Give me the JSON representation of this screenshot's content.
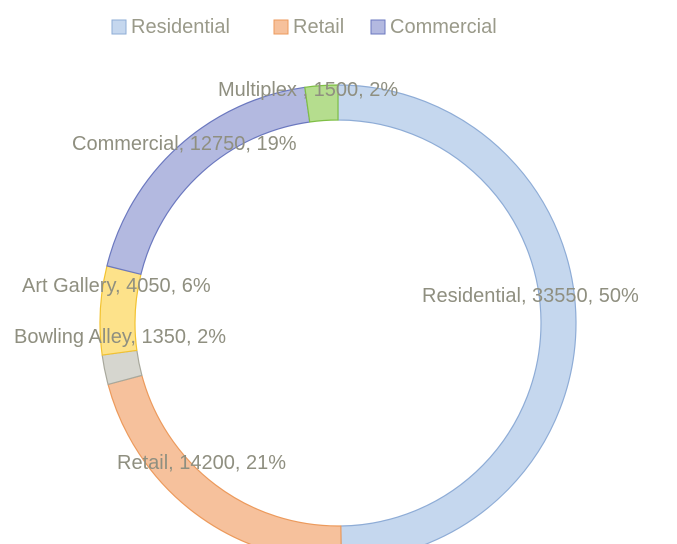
{
  "chart_data": {
    "type": "pie",
    "variant": "doughnut",
    "legend_position": "top",
    "legend": [
      {
        "label": "Residential",
        "color": "#c5d7ee",
        "edge": "#8eacd6"
      },
      {
        "label": "Retail",
        "color": "#f6c19c",
        "edge": "#ec9a5c"
      },
      {
        "label": "Commercial",
        "color": "#b3b9e0",
        "edge": "#6b78bf"
      }
    ],
    "slices": [
      {
        "label": "Residential",
        "value": 33550,
        "percent": "50%",
        "text": "Residential, 33550, 50%",
        "color": "#c5d7ee",
        "edge": "#8eacd6"
      },
      {
        "label": "Retail",
        "value": 14200,
        "percent": "21%",
        "text": "Retail, 14200, 21%",
        "color": "#f6c19c",
        "edge": "#ec9a5c"
      },
      {
        "label": "Bowling Alley",
        "value": 1350,
        "percent": "2%",
        "text": "Bowling Alley, 1350, 2%",
        "color": "#d6d6cf",
        "edge": "#a8a89c"
      },
      {
        "label": "Art Gallery",
        "value": 4050,
        "percent": "6%",
        "text": "Art Gallery, 4050, 6%",
        "color": "#fde28a",
        "edge": "#f2c230"
      },
      {
        "label": "Commercial",
        "value": 12750,
        "percent": "19%",
        "text": "Commercial, 12750, 19%",
        "color": "#b3b9e0",
        "edge": "#6b78bf"
      },
      {
        "label": "Multiplex ",
        "value": 1500,
        "percent": "2%",
        "text": "Multiplex , 1500, 2%",
        "color": "#b5dd8e",
        "edge": "#7fbf45"
      }
    ]
  }
}
